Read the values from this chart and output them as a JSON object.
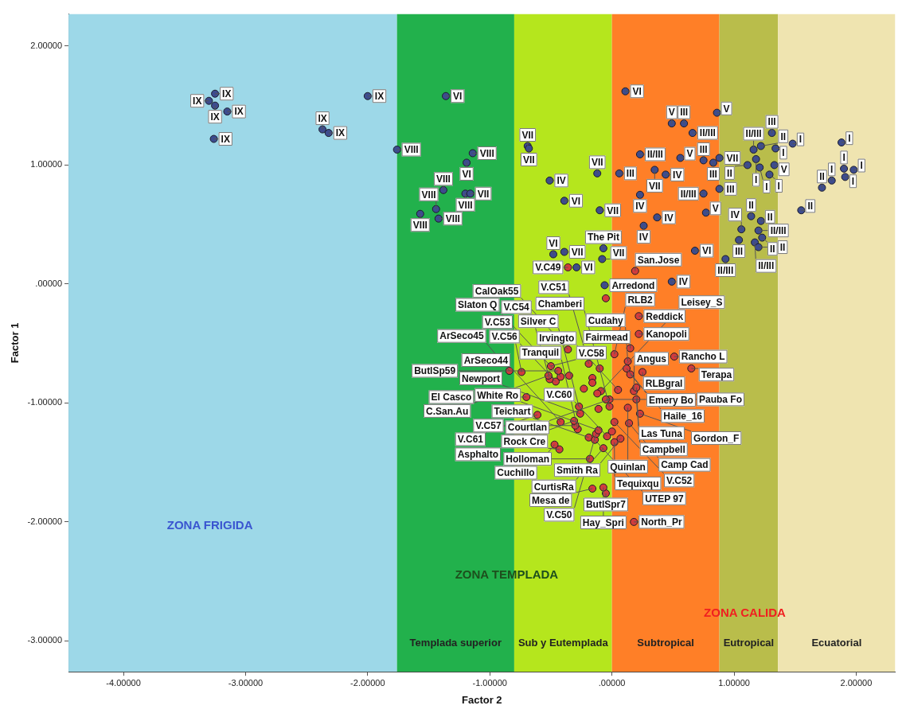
{
  "chart_data": {
    "type": "scatter",
    "xlabel": "Factor 2",
    "ylabel": "Factor 1",
    "xlim": [
      -4.45,
      2.32
    ],
    "ylim": [
      -3.26,
      2.27
    ],
    "xticks": [
      {
        "value": -4,
        "label": "-4.00000"
      },
      {
        "value": -3,
        "label": "-3.00000"
      },
      {
        "value": -2,
        "label": "-2.00000"
      },
      {
        "value": -1,
        "label": "-1.00000"
      },
      {
        "value": 0,
        "label": ".00000"
      },
      {
        "value": 1,
        "label": "1.00000"
      },
      {
        "value": 2,
        "label": "2.00000"
      }
    ],
    "yticks": [
      {
        "value": -3,
        "label": "-3.00000"
      },
      {
        "value": -2,
        "label": "-2.00000"
      },
      {
        "value": -1,
        "label": "-1.00000"
      },
      {
        "value": 0,
        "label": ".00000"
      },
      {
        "value": 1,
        "label": "1.00000"
      },
      {
        "value": 2,
        "label": "2.00000"
      }
    ],
    "grid": false,
    "legend": false,
    "marker": "circle",
    "bands": [
      {
        "axis": "x",
        "from": -4.45,
        "to": -1.76,
        "color": "#9dd8e8"
      },
      {
        "axis": "x",
        "from": -1.76,
        "to": -0.8,
        "label": "Templada superior",
        "color": "#22b14c"
      },
      {
        "axis": "x",
        "from": -0.8,
        "to": 0,
        "label": "Sub y Eutemplada",
        "color": "#b5e61d"
      },
      {
        "axis": "x",
        "from": 0,
        "to": 0.88,
        "label": "Subtropical",
        "color": "#ff7f27"
      },
      {
        "axis": "x",
        "from": 0.88,
        "to": 1.36,
        "label": "Eutropical",
        "color": "#b9bd4b"
      },
      {
        "axis": "x",
        "from": 1.36,
        "to": 2.32,
        "label": "Ecuatorial",
        "color": "#efe4b0"
      }
    ],
    "series": [
      {
        "color": "#3d4c8e",
        "x": [
          -3.25,
          -3.3,
          -3.25,
          -3.15,
          -3.26,
          -2.37,
          -2.32,
          -2.0,
          -1.36,
          -1.76,
          -1.14,
          -1.19,
          -1.38,
          -1.2,
          -1.16,
          -1.44,
          -1.57,
          -1.42,
          -0.69,
          -0.68,
          -0.51,
          -0.12,
          -0.39,
          -0.1,
          -0.48,
          -0.39,
          -0.29,
          -0.08,
          -0.07,
          -0.06,
          0.11,
          0.86,
          0.49,
          0.59,
          0.66,
          0.23,
          0.06,
          0.35,
          0.44,
          0.56,
          0.75,
          0.83,
          0.88,
          0.23,
          0.75,
          0.88,
          0.77,
          0.37,
          0.26,
          0.68,
          0.49,
          1.31,
          1.16,
          1.22,
          1.34,
          1.48,
          1.18,
          1.11,
          1.21,
          1.33,
          1.29,
          1.14,
          1.22,
          1.06,
          1.2,
          1.23,
          1.04,
          1.17,
          1.2,
          0.93,
          1.55,
          1.72,
          1.8,
          1.88,
          1.9,
          1.98,
          1.91
        ],
        "values": [
          1.6,
          1.54,
          1.5,
          1.45,
          1.22,
          1.3,
          1.27,
          1.58,
          1.58,
          1.13,
          1.1,
          1.02,
          0.79,
          0.76,
          0.76,
          0.63,
          0.59,
          0.55,
          1.16,
          1.14,
          0.87,
          0.93,
          0.7,
          0.62,
          0.25,
          0.27,
          0.14,
          0.21,
          0.3,
          -0.01,
          1.62,
          1.44,
          1.35,
          1.35,
          1.27,
          1.09,
          0.93,
          0.96,
          0.92,
          1.06,
          1.04,
          1.02,
          1.06,
          0.75,
          0.76,
          0.8,
          0.6,
          0.56,
          0.49,
          0.28,
          0.02,
          1.27,
          1.13,
          1.16,
          1.14,
          1.18,
          1.05,
          1.0,
          0.98,
          1.0,
          0.92,
          0.57,
          0.53,
          0.46,
          0.45,
          0.39,
          0.37,
          0.35,
          0.31,
          0.21,
          0.62,
          0.81,
          0.87,
          1.19,
          0.97,
          0.96,
          0.9
        ]
      },
      {
        "color": "#d23c3c",
        "x": [
          -0.36,
          0.19,
          -0.05,
          0.22,
          0.22,
          0.15,
          0.51,
          0.25,
          0.65,
          0.13,
          0.12,
          0.15,
          0.18,
          0.2,
          0.2,
          0.13,
          0.23,
          0.14,
          0.05,
          -0.02,
          0.07,
          0.02,
          -0.07,
          -0.04,
          -0.05,
          0.18,
          -0.07,
          -0.16,
          -0.18,
          -0.19,
          -0.43,
          -0.14,
          -0.13,
          0.02,
          -0.47,
          -0.11,
          -0.28,
          -0.3,
          -0.31,
          -0.42,
          -0.61,
          -0.26,
          -0.27,
          -0.05,
          -0.02,
          -0.7,
          -0.46,
          -0.51,
          -0.84,
          -0.74,
          -0.5,
          -0.19,
          0.02,
          -0.36,
          -0.09,
          -0.52,
          -0.42,
          -0.44,
          -0.1,
          -0.35,
          -0.16,
          -0.16,
          -0.23,
          -0.12,
          -0.11,
          0.0
        ],
        "values": [
          0.14,
          0.11,
          -0.12,
          -0.27,
          -0.42,
          -0.54,
          -0.61,
          -0.74,
          -0.71,
          -0.65,
          -0.71,
          -0.76,
          -0.9,
          -0.87,
          -0.97,
          -1.04,
          -1.09,
          -1.17,
          -0.89,
          -0.97,
          -1.3,
          -1.33,
          -1.38,
          -1.28,
          -1.76,
          -2.0,
          -1.71,
          -1.72,
          -1.47,
          -1.29,
          -1.39,
          -1.31,
          -1.26,
          -1.16,
          -1.35,
          -1.23,
          -1.22,
          -1.19,
          -1.15,
          -1.16,
          -1.1,
          -1.09,
          -1.03,
          -0.97,
          -1.03,
          -0.95,
          -0.82,
          -0.8,
          -0.73,
          -0.74,
          -0.69,
          -0.67,
          -0.59,
          -0.55,
          -0.9,
          -0.77,
          -0.78,
          -0.73,
          -0.71,
          -0.77,
          -0.79,
          -0.83,
          -0.88,
          -0.92,
          -1.05,
          -1.24
        ]
      }
    ],
    "annotations": [
      "ZONA FRIGIDA",
      "ZONA TEMPLADA",
      "ZONA CALIDA",
      {
        "text": "IX",
        "x": -3.25,
        "y": 1.6
      },
      {
        "text": "IX",
        "x": -3.3,
        "y": 1.54
      },
      {
        "text": "IX",
        "x": -3.25,
        "y": 1.5
      },
      {
        "text": "IX",
        "x": -3.15,
        "y": 1.45
      },
      {
        "text": "IX",
        "x": -3.26,
        "y": 1.22
      },
      {
        "text": "IX",
        "x": -2.37,
        "y": 1.3
      },
      {
        "text": "IX",
        "x": -2.32,
        "y": 1.27
      },
      {
        "text": "IX",
        "x": -2.0,
        "y": 1.58
      },
      {
        "text": "VI",
        "x": -1.36,
        "y": 1.58
      },
      {
        "text": "VIII",
        "x": -1.76,
        "y": 1.13
      },
      {
        "text": "VIII",
        "x": -1.14,
        "y": 1.1
      },
      {
        "text": "VI",
        "x": -1.19,
        "y": 1.02
      },
      {
        "text": "VIII",
        "x": -1.38,
        "y": 0.79
      },
      {
        "text": "VIII",
        "x": -1.2,
        "y": 0.76
      },
      {
        "text": "VII",
        "x": -1.16,
        "y": 0.76
      },
      {
        "text": "VIII",
        "x": -1.44,
        "y": 0.63
      },
      {
        "text": "VIII",
        "x": -1.57,
        "y": 0.59
      },
      {
        "text": "VIII",
        "x": -1.42,
        "y": 0.55
      },
      {
        "text": "VII",
        "x": -0.69,
        "y": 1.16
      },
      {
        "text": "VII",
        "x": -0.68,
        "y": 1.14
      },
      {
        "text": "IV",
        "x": -0.51,
        "y": 0.87
      },
      {
        "text": "VII",
        "x": -0.12,
        "y": 0.93
      },
      {
        "text": "VI",
        "x": -0.39,
        "y": 0.7
      },
      {
        "text": "VII",
        "x": -0.1,
        "y": 0.62
      },
      {
        "text": "VI",
        "x": -0.48,
        "y": 0.25
      },
      {
        "text": "VII",
        "x": -0.39,
        "y": 0.27
      },
      {
        "text": "VI",
        "x": -0.29,
        "y": 0.14
      },
      {
        "text": "VII",
        "x": -0.08,
        "y": 0.21
      },
      {
        "text": "The Pit",
        "x": -0.07,
        "y": 0.3
      },
      {
        "text": "Arredond",
        "x": -0.06,
        "y": -0.01
      },
      {
        "text": "VI",
        "x": 0.11,
        "y": 1.62
      },
      {
        "text": "V",
        "x": 0.86,
        "y": 1.44
      },
      {
        "text": "V",
        "x": 0.49,
        "y": 1.35
      },
      {
        "text": "III",
        "x": 0.59,
        "y": 1.35
      },
      {
        "text": "II/III",
        "x": 0.66,
        "y": 1.27
      },
      {
        "text": "II/III",
        "x": 0.23,
        "y": 1.09
      },
      {
        "text": "III",
        "x": 0.06,
        "y": 0.93
      },
      {
        "text": "VII",
        "x": 0.35,
        "y": 0.96
      },
      {
        "text": "IV",
        "x": 0.44,
        "y": 0.92
      },
      {
        "text": "V",
        "x": 0.56,
        "y": 1.06
      },
      {
        "text": "III",
        "x": 0.75,
        "y": 1.04
      },
      {
        "text": "III",
        "x": 0.83,
        "y": 1.02
      },
      {
        "text": "VII",
        "x": 0.88,
        "y": 1.06
      },
      {
        "text": "IV",
        "x": 0.23,
        "y": 0.75
      },
      {
        "text": "II/III",
        "x": 0.75,
        "y": 0.76
      },
      {
        "text": "III",
        "x": 0.88,
        "y": 0.8
      },
      {
        "text": "V",
        "x": 0.77,
        "y": 0.6
      },
      {
        "text": "IV",
        "x": 0.37,
        "y": 0.56
      },
      {
        "text": "IV",
        "x": 0.26,
        "y": 0.49
      },
      {
        "text": "VI",
        "x": 0.68,
        "y": 0.28
      },
      {
        "text": "IV",
        "x": 0.49,
        "y": 0.02
      },
      {
        "text": "III",
        "x": 1.31,
        "y": 1.27
      },
      {
        "text": "II/III",
        "x": 1.16,
        "y": 1.13
      },
      {
        "text": "II",
        "x": 1.22,
        "y": 1.16
      },
      {
        "text": "I",
        "x": 1.34,
        "y": 1.14
      },
      {
        "text": "I",
        "x": 1.48,
        "y": 1.18
      },
      {
        "text": "I",
        "x": 1.18,
        "y": 1.05
      },
      {
        "text": "II",
        "x": 1.11,
        "y": 1.0
      },
      {
        "text": "I",
        "x": 1.21,
        "y": 0.98
      },
      {
        "text": "V",
        "x": 1.33,
        "y": 1.0
      },
      {
        "text": "I",
        "x": 1.29,
        "y": 0.92
      },
      {
        "text": "II",
        "x": 1.14,
        "y": 0.57
      },
      {
        "text": "II",
        "x": 1.22,
        "y": 0.53
      },
      {
        "text": "IV",
        "x": 1.06,
        "y": 0.46
      },
      {
        "text": "II/III",
        "x": 1.2,
        "y": 0.45
      },
      {
        "text": "II",
        "x": 1.23,
        "y": 0.39
      },
      {
        "text": "III",
        "x": 1.04,
        "y": 0.37
      },
      {
        "text": "II/III",
        "x": 1.17,
        "y": 0.35
      },
      {
        "text": "II",
        "x": 1.2,
        "y": 0.31
      },
      {
        "text": "II/III",
        "x": 0.93,
        "y": 0.21
      },
      {
        "text": "II",
        "x": 1.55,
        "y": 0.62
      },
      {
        "text": "II",
        "x": 1.72,
        "y": 0.81
      },
      {
        "text": "I",
        "x": 1.8,
        "y": 0.87
      },
      {
        "text": "I",
        "x": 1.88,
        "y": 1.19
      },
      {
        "text": "I",
        "x": 1.9,
        "y": 0.97
      },
      {
        "text": "I",
        "x": 1.98,
        "y": 0.96
      },
      {
        "text": "I",
        "x": 1.91,
        "y": 0.9
      },
      {
        "text": "V.C49",
        "x": -0.36,
        "y": 0.14
      },
      {
        "text": "San.Jose",
        "x": 0.19,
        "y": 0.11
      },
      {
        "text": "Reddick",
        "x": 0.22,
        "y": -0.27
      },
      {
        "text": "Kanopoli",
        "x": 0.22,
        "y": -0.42
      },
      {
        "text": "Fairmead",
        "x": 0.15,
        "y": -0.54
      },
      {
        "text": "Rancho L",
        "x": 0.51,
        "y": -0.61
      },
      {
        "text": "RLBgral",
        "x": 0.25,
        "y": -0.74
      },
      {
        "text": "Terapa",
        "x": 0.65,
        "y": -0.71
      },
      {
        "text": "Cudahy",
        "x": 0.13,
        "y": -0.65
      },
      {
        "text": "Emery Bo",
        "x": 0.12,
        "y": -0.71
      },
      {
        "text": "Haile_16",
        "x": 0.15,
        "y": -0.76
      },
      {
        "text": "Angus",
        "x": 0.18,
        "y": -0.9
      },
      {
        "text": "Las Tuna",
        "x": 0.2,
        "y": -0.87
      },
      {
        "text": "Campbell",
        "x": 0.2,
        "y": -0.97
      },
      {
        "text": "Quinlan",
        "x": 0.13,
        "y": -1.04
      },
      {
        "text": "Gordon_F",
        "x": 0.23,
        "y": -1.09
      },
      {
        "text": "Camp Cad",
        "x": 0.14,
        "y": -1.17
      },
      {
        "text": "Irvingto",
        "x": 0.05,
        "y": -0.89
      },
      {
        "text": "Courtlan",
        "x": -0.02,
        "y": -0.97
      },
      {
        "text": "Smith Ra",
        "x": 0.07,
        "y": -1.3
      },
      {
        "text": "Tequixqu",
        "x": 0.02,
        "y": -1.33
      },
      {
        "text": "CurtisRa",
        "x": -0.07,
        "y": -1.38
      },
      {
        "text": "V.C60",
        "x": -0.04,
        "y": -1.28
      },
      {
        "text": "ButlSpr7",
        "x": -0.05,
        "y": -1.76
      },
      {
        "text": "North_Pr",
        "x": 0.18,
        "y": -2.0
      },
      {
        "text": "Hay_Spri",
        "x": -0.07,
        "y": -1.71
      },
      {
        "text": "Mesa de",
        "x": -0.16,
        "y": -1.72
      },
      {
        "text": "Holloman",
        "x": -0.18,
        "y": -1.47
      },
      {
        "text": "Teichart",
        "x": -0.19,
        "y": -1.29
      },
      {
        "text": "Rock Cre",
        "x": -0.43,
        "y": -1.39
      },
      {
        "text": "UTEP 97",
        "x": -0.14,
        "y": -1.31
      },
      {
        "text": "V.C50",
        "x": -0.13,
        "y": -1.26
      },
      {
        "text": "V.C52",
        "x": 0.02,
        "y": -1.16
      },
      {
        "text": "Cuchillo",
        "x": -0.47,
        "y": -1.35
      },
      {
        "text": "White Ro",
        "x": -0.11,
        "y": -1.23
      },
      {
        "text": "Tranquil",
        "x": -0.28,
        "y": -1.22
      },
      {
        "text": "V.C57",
        "x": -0.3,
        "y": -1.19
      },
      {
        "text": "Asphalto",
        "x": -0.31,
        "y": -1.15
      },
      {
        "text": "ArSeco44",
        "x": -0.42,
        "y": -1.16
      },
      {
        "text": "V.C61",
        "x": -0.61,
        "y": -1.1
      },
      {
        "text": "Newport",
        "x": -0.26,
        "y": -1.09
      },
      {
        "text": "Silver C",
        "x": -0.27,
        "y": -1.03
      },
      {
        "text": "Pauba Fo",
        "x": -0.05,
        "y": -0.97
      },
      {
        "text": "Chamberi",
        "x": -0.02,
        "y": -1.03
      },
      {
        "text": "El Casco",
        "x": -0.7,
        "y": -0.95
      },
      {
        "text": "V.C56",
        "x": -0.46,
        "y": -0.82
      },
      {
        "text": "V.C54",
        "x": -0.51,
        "y": -0.8
      },
      {
        "text": "ArSeco45",
        "x": -0.84,
        "y": -0.73
      },
      {
        "text": "V.C53",
        "x": -0.74,
        "y": -0.74
      },
      {
        "text": "V.C58",
        "x": -0.5,
        "y": -0.69
      },
      {
        "text": "V.C51",
        "x": -0.19,
        "y": -0.67
      },
      {
        "text": "RLB2",
        "x": 0.02,
        "y": -0.59
      },
      {
        "text": "CalOak55",
        "x": -0.36,
        "y": -0.55
      },
      {
        "text": "Leisey_S",
        "x": -0.09,
        "y": -0.9
      },
      {
        "text": "C.San.Au",
        "x": -0.52,
        "y": -0.77
      },
      {
        "text": "Slaton Q",
        "x": -0.42,
        "y": -0.78
      },
      {
        "text": "ButlSp59",
        "x": -0.44,
        "y": -0.73
      }
    ]
  }
}
